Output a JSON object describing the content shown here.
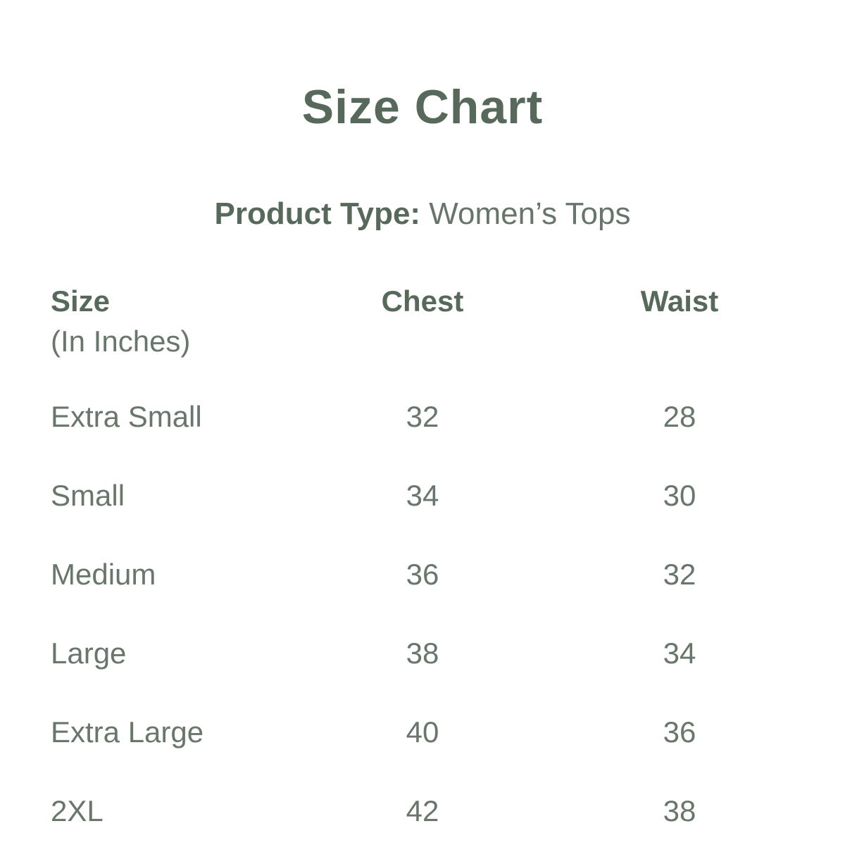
{
  "page": {
    "title": "Size Chart",
    "product_type_label": "Product Type:",
    "product_type_value": "Women’s Tops"
  },
  "table": {
    "headers": {
      "size": "Size",
      "size_unit": "(In Inches)",
      "chest": "Chest",
      "waist": "Waist"
    },
    "rows": [
      {
        "size": "Extra Small",
        "chest": "32",
        "waist": "28"
      },
      {
        "size": "Small",
        "chest": "34",
        "waist": "30"
      },
      {
        "size": "Medium",
        "chest": "36",
        "waist": "32"
      },
      {
        "size": "Large",
        "chest": "38",
        "waist": "34"
      },
      {
        "size": "Extra Large",
        "chest": "40",
        "waist": "36"
      },
      {
        "size": "2XL",
        "chest": "42",
        "waist": "38"
      }
    ]
  },
  "colors": {
    "heading": "#57695b",
    "body_text": "#69766b",
    "background": "#ffffff"
  },
  "chart_data": {
    "type": "table",
    "title": "Size Chart",
    "subtitle": "Product Type: Women’s Tops",
    "columns": [
      "Size (In Inches)",
      "Chest",
      "Waist"
    ],
    "rows": [
      [
        "Extra Small",
        32,
        28
      ],
      [
        "Small",
        34,
        30
      ],
      [
        "Medium",
        36,
        32
      ],
      [
        "Large",
        38,
        34
      ],
      [
        "Extra Large",
        40,
        36
      ],
      [
        "2XL",
        42,
        38
      ]
    ],
    "units": "inches"
  }
}
